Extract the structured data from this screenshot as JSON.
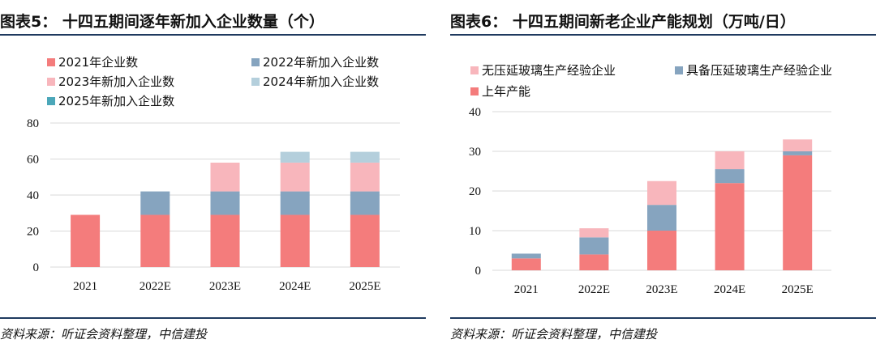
{
  "charts": [
    {
      "title": "图表5：  十四五期间逐年新加入企业数量（个）",
      "source": "资料来源：听证会资料整理，中信建投",
      "chart_data": {
        "type": "bar",
        "stacked": true,
        "categories": [
          "2021",
          "2022E",
          "2023E",
          "2024E",
          "2025E"
        ],
        "series": [
          {
            "name": "2021年企业数",
            "color": "#f47c7c",
            "values": [
              29,
              29,
              29,
              29,
              29
            ]
          },
          {
            "name": "2022年新加入企业数",
            "color": "#86a4bf",
            "values": [
              0,
              13,
              13,
              13,
              13
            ]
          },
          {
            "name": "2023年新加入企业数",
            "color": "#f8b6bc",
            "values": [
              0,
              0,
              16,
              16,
              16
            ]
          },
          {
            "name": "2024年新加入企业数",
            "color": "#b4cfdc",
            "values": [
              0,
              0,
              0,
              6,
              6
            ]
          },
          {
            "name": "2025年新加入企业数",
            "color": "#4ba7b9",
            "values": [
              0,
              0,
              0,
              0,
              0
            ]
          }
        ],
        "ylim": [
          0,
          80
        ],
        "yticks": [
          "0",
          "20",
          "40",
          "60",
          "80"
        ],
        "grid": true,
        "legend_position": "top"
      }
    },
    {
      "title": "图表6：  十四五期间新老企业产能规划（万吨/日）",
      "source": "资料来源：听证会资料整理，中信建投",
      "chart_data": {
        "type": "bar",
        "stacked": true,
        "categories": [
          "2021",
          "2022E",
          "2023E",
          "2024E",
          "2025E"
        ],
        "series": [
          {
            "name": "上年产能",
            "color": "#f47c7c",
            "values": [
              3,
              4,
              10,
              22,
              29
            ]
          },
          {
            "name": "具备压延玻璃生产经验企业",
            "color": "#86a4bf",
            "values": [
              1.2,
              4.3,
              6.5,
              3.5,
              1
            ]
          },
          {
            "name": "无压延玻璃生产经验企业",
            "color": "#f8b6bc",
            "values": [
              0,
              2.3,
              6,
              4.5,
              3
            ]
          }
        ],
        "legend_order": [
          2,
          1,
          0
        ],
        "ylim": [
          0,
          40
        ],
        "yticks": [
          "0",
          "10",
          "20",
          "30",
          "40"
        ],
        "grid": true,
        "legend_position": "top"
      }
    }
  ]
}
